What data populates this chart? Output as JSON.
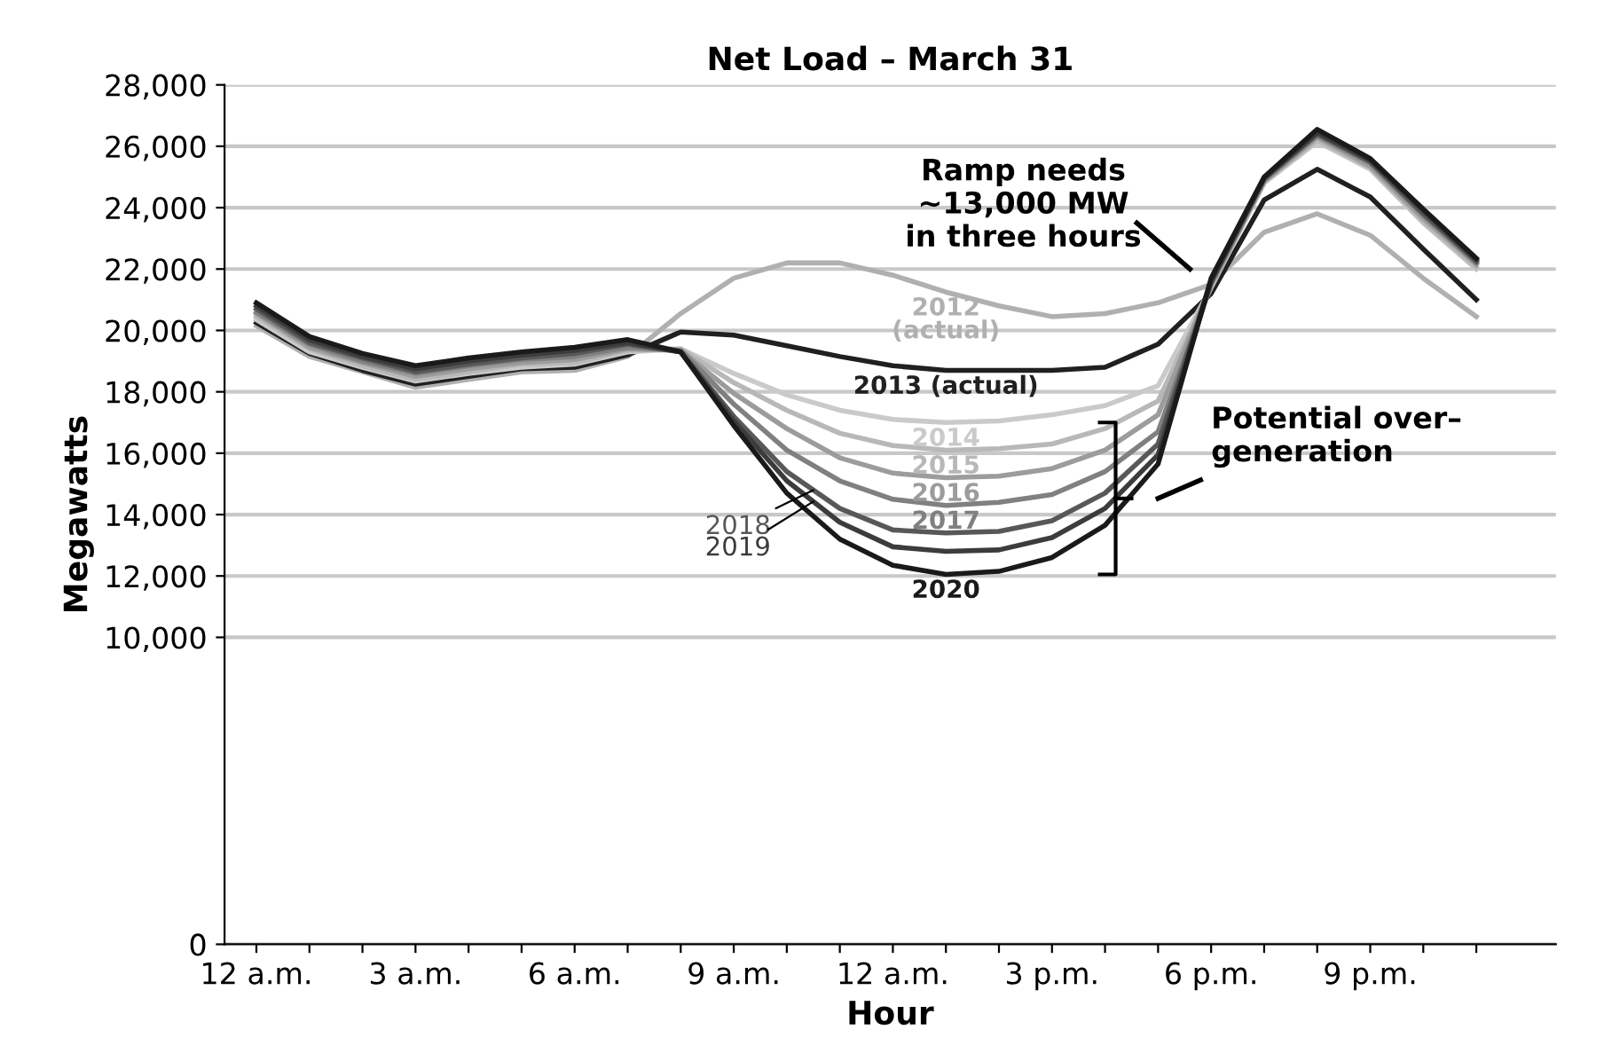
{
  "chart_data": {
    "type": "line",
    "title": "Net Load – March 31",
    "xlabel": "Hour",
    "ylabel": "Megawatts",
    "categories": [
      "12 a.m.",
      null,
      null,
      "3 a.m.",
      null,
      null,
      "6 a.m.",
      null,
      null,
      "9 a.m.",
      null,
      null,
      "12 a.m.",
      null,
      null,
      "3 p.m.",
      null,
      null,
      "6 p.m.",
      null,
      null,
      "9 p.m.",
      null,
      null
    ],
    "ylim": [
      0,
      28000
    ],
    "yticks": [
      {
        "value": 0,
        "label": "0"
      },
      {
        "value": 10000,
        "label": "10,000"
      },
      {
        "value": 12000,
        "label": "12,000"
      },
      {
        "value": 14000,
        "label": "14,000"
      },
      {
        "value": 16000,
        "label": "16,000"
      },
      {
        "value": 18000,
        "label": "18,000"
      },
      {
        "value": 20000,
        "label": "20,000"
      },
      {
        "value": 22000,
        "label": "22,000"
      },
      {
        "value": 24000,
        "label": "24,000"
      },
      {
        "value": 26000,
        "label": "26,000"
      },
      {
        "value": 28000,
        "label": "28,000"
      }
    ],
    "grid": "y",
    "legend": false,
    "marker": "none",
    "line_style": "solid",
    "series": [
      {
        "name": "2012\n(actual)",
        "color": "#b0b0b0",
        "values": [
          20150,
          19150,
          18650,
          18150,
          18400,
          18650,
          18700,
          19150,
          20550,
          21700,
          22200,
          22200,
          21800,
          21250,
          20800,
          20450,
          20550,
          20900,
          21500,
          23200,
          23800,
          23100,
          21700,
          20450
        ]
      },
      {
        "name": "2013 (actual)",
        "color": "#202020",
        "values": [
          20250,
          19250,
          18700,
          18250,
          18500,
          18750,
          18800,
          19200,
          19950,
          19850,
          19500,
          19150,
          18850,
          18700,
          18700,
          18700,
          18800,
          19550,
          21200,
          24250,
          25250,
          24350,
          22650,
          21000
        ]
      },
      {
        "name": "2014",
        "color": "#cacaca",
        "values": [
          20350,
          19300,
          18800,
          18350,
          18600,
          18800,
          18900,
          19300,
          19400,
          18600,
          17900,
          17400,
          17100,
          17000,
          17050,
          17250,
          17550,
          18200,
          21400,
          24800,
          26150,
          25250,
          23500,
          22000
        ]
      },
      {
        "name": "2015",
        "color": "#b8b8b8",
        "values": [
          20450,
          19400,
          18850,
          18400,
          18650,
          18900,
          18950,
          19350,
          19400,
          18300,
          17400,
          16650,
          16250,
          16100,
          16150,
          16300,
          16800,
          17700,
          21400,
          24850,
          26200,
          25300,
          23550,
          22050
        ]
      },
      {
        "name": "2016",
        "color": "#9c9c9c",
        "values": [
          20550,
          19450,
          18950,
          18500,
          18750,
          18950,
          19050,
          19400,
          19350,
          17950,
          16800,
          15850,
          15350,
          15200,
          15250,
          15500,
          16100,
          17250,
          21500,
          24850,
          26300,
          25350,
          23650,
          22150
        ]
      },
      {
        "name": "2017",
        "color": "#808080",
        "values": [
          20600,
          19550,
          19000,
          18600,
          18850,
          19050,
          19150,
          19450,
          19350,
          17600,
          16100,
          15100,
          14500,
          14300,
          14400,
          14650,
          15400,
          16700,
          21500,
          24900,
          26350,
          25450,
          23750,
          22200
        ]
      },
      {
        "name": "2018",
        "color": "#585858",
        "values": [
          20700,
          19600,
          19100,
          18650,
          18900,
          19100,
          19250,
          19550,
          19300,
          17200,
          15400,
          14200,
          13500,
          13400,
          13450,
          13800,
          14700,
          16300,
          21600,
          24950,
          26400,
          25500,
          23800,
          22250
        ]
      },
      {
        "name": "2019",
        "color": "#3c3c3c",
        "values": [
          20800,
          19700,
          19150,
          18750,
          19000,
          19200,
          19350,
          19600,
          19300,
          17050,
          15100,
          13750,
          12950,
          12800,
          12850,
          13250,
          14200,
          15950,
          21600,
          24950,
          26450,
          25550,
          23900,
          22300
        ]
      },
      {
        "name": "2020",
        "color": "#1a1a1a",
        "values": [
          20900,
          19800,
          19250,
          18850,
          19100,
          19300,
          19450,
          19700,
          19300,
          16900,
          14700,
          13200,
          12350,
          12050,
          12150,
          12600,
          13650,
          15650,
          21700,
          25000,
          26550,
          25600,
          23950,
          22350
        ]
      }
    ],
    "annotations": [
      "Ramp needs\n~13,000 MW\nin three hours",
      "Potential over–\ngeneration"
    ]
  }
}
